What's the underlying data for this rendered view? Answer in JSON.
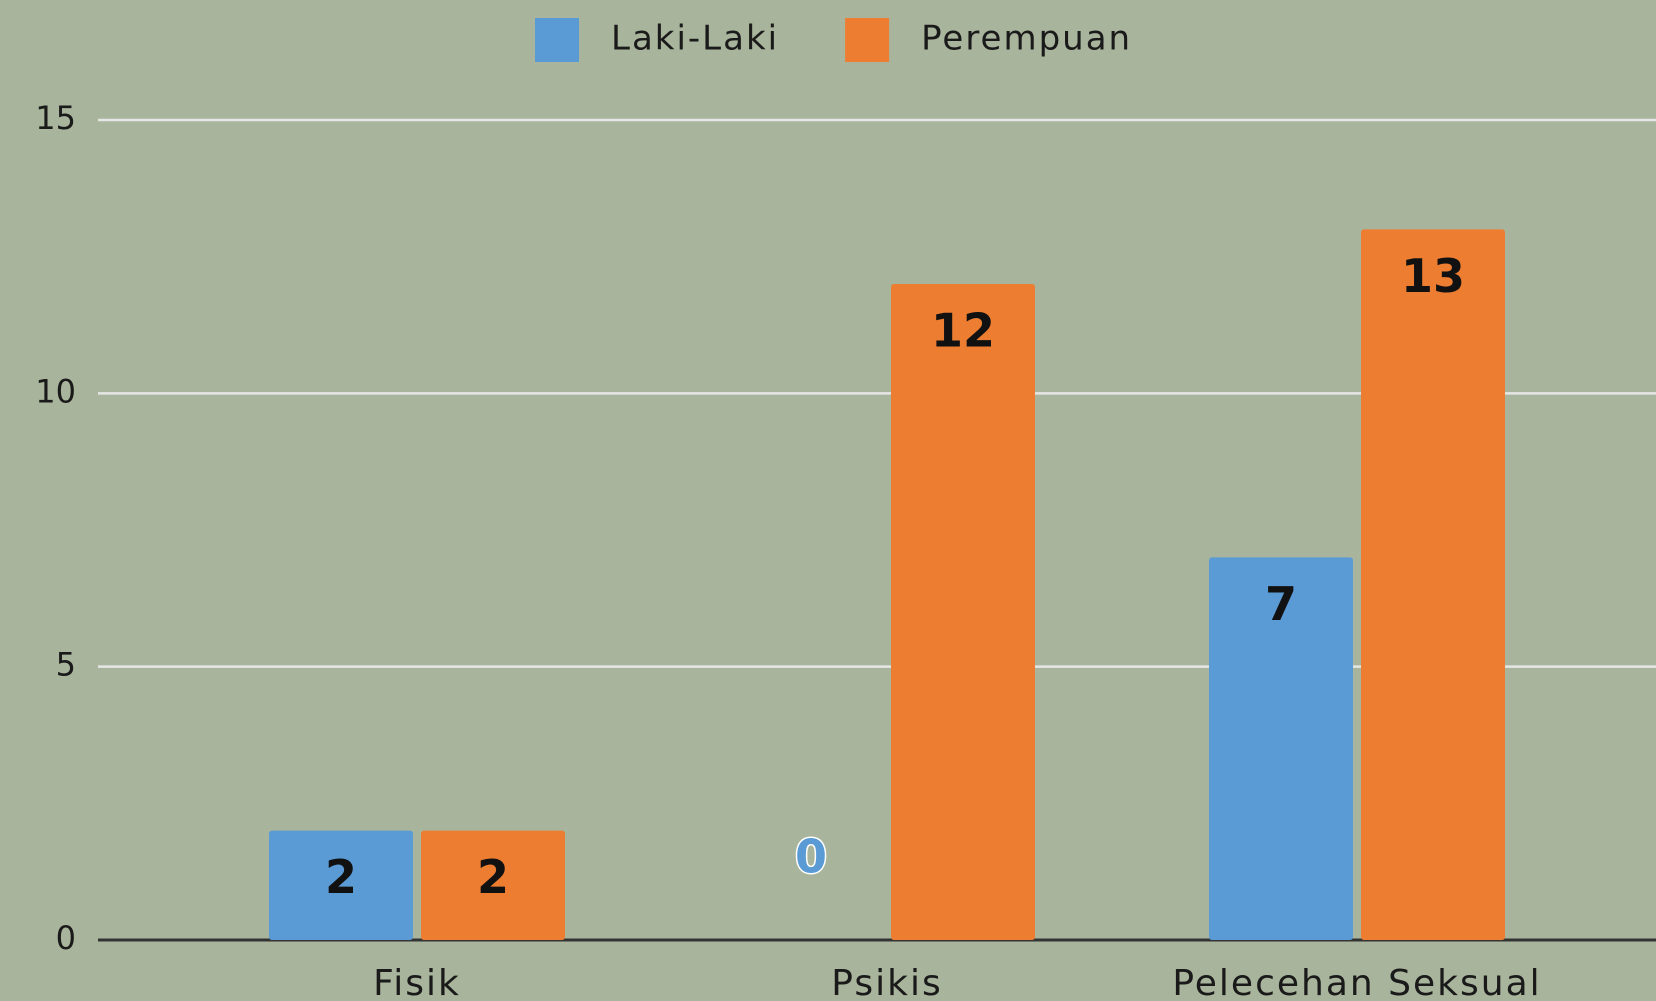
{
  "chart_data": {
    "type": "bar",
    "categories": [
      "Fisik",
      "Psikis",
      "Pelecehan Seksual"
    ],
    "series": [
      {
        "name": "Laki-Laki",
        "color": "#5b9bd5",
        "values": [
          2,
          0,
          7
        ]
      },
      {
        "name": "Perempuan",
        "color": "#ed7d31",
        "values": [
          2,
          12,
          13
        ]
      }
    ],
    "ylim": [
      0,
      15
    ],
    "yticks": [
      0,
      5,
      10,
      15
    ],
    "grid": true,
    "legend": "top"
  }
}
